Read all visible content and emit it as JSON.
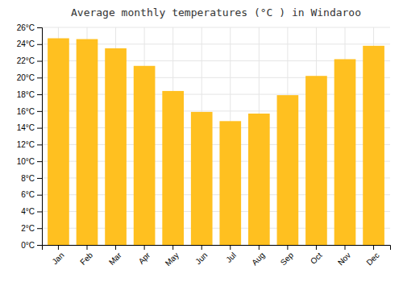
{
  "chart_data": {
    "type": "bar",
    "title": "Average monthly temperatures (°C ) in Windaroo",
    "categories": [
      "Jan",
      "Feb",
      "Mar",
      "Apr",
      "May",
      "Jun",
      "Jul",
      "Aug",
      "Sep",
      "Oct",
      "Nov",
      "Dec"
    ],
    "values": [
      24.7,
      24.6,
      23.5,
      21.4,
      18.4,
      15.9,
      14.8,
      15.7,
      17.9,
      20.2,
      22.2,
      23.8
    ],
    "color": "#FFC020",
    "ylim": [
      0,
      26
    ],
    "yticks": [
      {
        "value": 0,
        "label": "0°C"
      },
      {
        "value": 2,
        "label": "2°C"
      },
      {
        "value": 4,
        "label": "4°C"
      },
      {
        "value": 6,
        "label": "6°C"
      },
      {
        "value": 8,
        "label": "8°C"
      },
      {
        "value": 10,
        "label": "10°C"
      },
      {
        "value": 12,
        "label": "12°C"
      },
      {
        "value": 14,
        "label": "14°C"
      },
      {
        "value": 16,
        "label": "16°C"
      },
      {
        "value": 18,
        "label": "18°C"
      },
      {
        "value": 20,
        "label": "20°C"
      },
      {
        "value": 22,
        "label": "22°C"
      },
      {
        "value": 24,
        "label": "24°C"
      },
      {
        "value": 26,
        "label": "26°C"
      }
    ],
    "grid": true
  }
}
